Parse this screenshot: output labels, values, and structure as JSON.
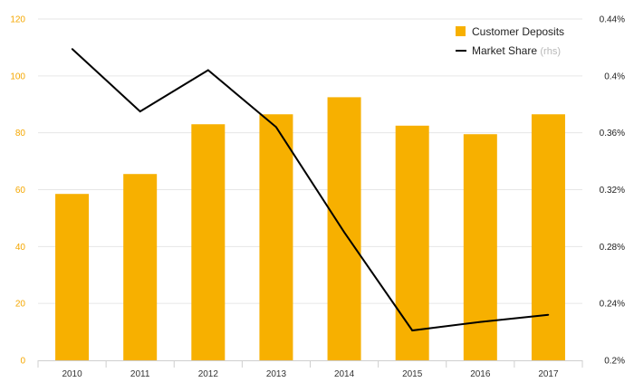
{
  "chart_data": {
    "type": "bar",
    "categories": [
      "2010",
      "2011",
      "2012",
      "2013",
      "2014",
      "2015",
      "2016",
      "2017"
    ],
    "series": [
      {
        "name": "Customer Deposits",
        "type": "bar",
        "axis": "left",
        "color": "#f7b000",
        "values": [
          58.5,
          65.5,
          83,
          86.5,
          92.5,
          82.5,
          79.5,
          86.5
        ]
      },
      {
        "name": "Market Share",
        "name_suffix": "(rhs)",
        "type": "line",
        "axis": "right",
        "color": "#000000",
        "values": [
          0.419,
          0.375,
          0.404,
          0.364,
          0.29,
          0.221,
          0.227,
          0.232
        ]
      }
    ],
    "y_left": {
      "lim": [
        0,
        120
      ],
      "ticks": [
        0,
        20,
        40,
        60,
        80,
        100,
        120
      ],
      "tick_labels": [
        "0",
        "20",
        "40",
        "60",
        "80",
        "100",
        "120"
      ],
      "color": "#f5a700"
    },
    "y_right": {
      "lim": [
        0.2,
        0.44
      ],
      "ticks": [
        0.2,
        0.24,
        0.28,
        0.32,
        0.36,
        0.4,
        0.44
      ],
      "tick_labels": [
        "0.2%",
        "0.24%",
        "0.28%",
        "0.32%",
        "0.36%",
        "0.4%",
        "0.44%"
      ]
    },
    "legend_position": "top-right",
    "grid": true
  }
}
